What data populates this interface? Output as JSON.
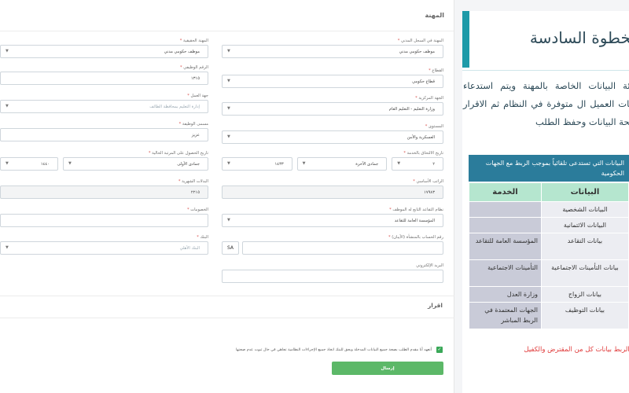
{
  "form": {
    "section_title": "المهنة",
    "fields": {
      "occupation_registry": {
        "label": "المهنة في السجل المدني",
        "value": "موظف حكومي مدني"
      },
      "occupation_actual": {
        "label": "المهنة الحقيقية",
        "value": "موظف حكومي مدني"
      },
      "sector": {
        "label": "القطاع",
        "value": "قطاع حكومي"
      },
      "job_number": {
        "label": "الرقم الوظيفي",
        "value": "١٣١٥"
      },
      "employer": {
        "label": "الجهة المركزية",
        "value": "وزارة التعليم - التعليم العام"
      },
      "employer_branch": {
        "label": "جهة العمل",
        "value": "إدارة التعليم بمحافظة الطائف"
      },
      "rank": {
        "label": "المستوى",
        "value": "العسكرية والأمن"
      },
      "job_title": {
        "label": "مسمى الوظيفة",
        "value": "عزيز"
      },
      "hire_date": {
        "label": "تاريخ الالتحاق بالخدمة",
        "day": "٢",
        "month": "جمادى الآخرة",
        "year": "١٤٣٣"
      },
      "current_grade_date": {
        "label": "تاريخ الحصول على المرتبة الحالية",
        "month": "جمادى الأولى",
        "year": "١٤٤٠"
      },
      "basic_salary": {
        "label": "الراتب الأساسي",
        "value": "١٧٩٨٣"
      },
      "monthly_allowances": {
        "label": "البدلات الشهرية",
        "value": "٢٢١٥"
      },
      "retirement_system": {
        "label": "نظام التقاعد التابع له الموظف",
        "value": "المؤسسة العامة للتقاعد"
      },
      "deductions": {
        "label": "الخصومات",
        "value": ""
      },
      "iban": {
        "label": "رقم الحساب بالمنشأة (الآيبان)",
        "prefix": "SA",
        "value": ""
      },
      "bank": {
        "label": "البنك",
        "value": "البنك الأهلي"
      },
      "email": {
        "label": "البريد الإلكتروني",
        "value": ""
      }
    },
    "declaration_title": "اقرار",
    "agree_text": "أتعهد أنا مقدم الطلب بصحة جميع البيانات المدخلة وبحق للبنك اتخاذ جميع الإجراءات النظامية تجاهي في حال ثبوت عدم صحتها",
    "submit_label": "إرسال"
  },
  "info": {
    "title": "الخطوة السادسة",
    "description": "تعبئة البيانات الخاصة بالمهنة ويتم استدعاء بيانات العميل ال متوفرة في النظام ثم الاقرار بصحة البيانات وحفظ الطلب",
    "table_caption": "البيانات التي تستدعى تلقائياً بموجب الربط مع الجهات الحكومية",
    "table_headers": {
      "service": "الخدمة",
      "data": "البيانات"
    },
    "rows": [
      {
        "service": "",
        "data": "البيانات الشخصية"
      },
      {
        "service": "",
        "data": "البيانات الائتمانية"
      },
      {
        "service": "المؤسسة العامة للتقاعد",
        "data": "بيانات التقاعد"
      },
      {
        "service": "التأمينات الاجتماعية",
        "data": "بيانات التأمينات الاجتماعية"
      },
      {
        "service": "وزارة العدل",
        "data": "بيانات الزواج"
      },
      {
        "service": "الجهات المعتمدة في الربط المباشر",
        "data": "بيانات التوظيف"
      }
    ],
    "footnote": "يتم الربط بيانات كل من المقترض والكفيل"
  },
  "colors": {
    "accent_teal": "#1e9aa8",
    "header_blue": "#2b7c9b",
    "submit_green": "#5cb868",
    "note_red": "#e03b3b"
  }
}
